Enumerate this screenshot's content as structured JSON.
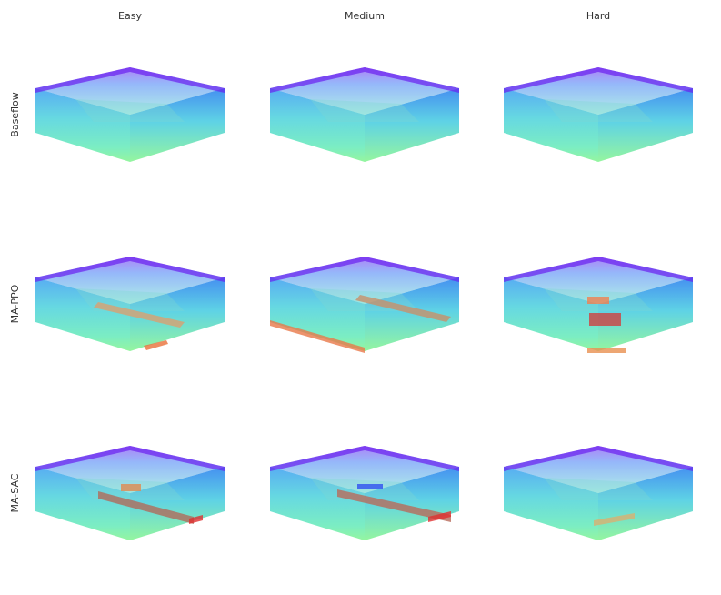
{
  "columns": [
    "Easy",
    "Medium",
    "Hard"
  ],
  "rows": [
    "Baseflow",
    "MA-PPO",
    "MA-SAC"
  ]
}
